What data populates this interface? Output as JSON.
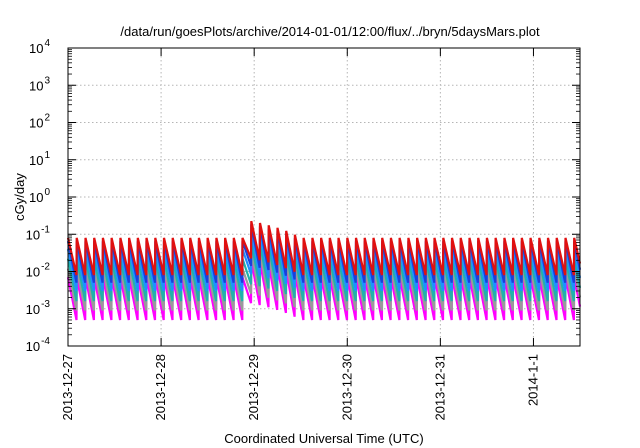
{
  "chart_data": {
    "type": "line",
    "title": "/data/run/goesPlots/archive/2014-01-01/12:00/flux/../bryn/5daysMars.plot",
    "xlabel": "Coordinated Universal Time (UTC)",
    "ylabel": "cGy/day",
    "y_scale": "log",
    "ylim": [
      0.0001,
      10000
    ],
    "xlim": [
      "2013-12-27",
      "2014-01-01 12:00"
    ],
    "x_tick_labels": [
      "2013-12-27",
      "2013-12-28",
      "2013-12-29",
      "2013-12-30",
      "2013-12-31",
      "2014-1-1"
    ],
    "y_ticks": [
      {
        "base": "10",
        "exp": "-4"
      },
      {
        "base": "10",
        "exp": "-3"
      },
      {
        "base": "10",
        "exp": "-2"
      },
      {
        "base": "10",
        "exp": "-1"
      },
      {
        "base": "10",
        "exp": "0"
      },
      {
        "base": "10",
        "exp": "1"
      },
      {
        "base": "10",
        "exp": "2"
      },
      {
        "base": "10",
        "exp": "3"
      },
      {
        "base": "10",
        "exp": "4"
      }
    ],
    "grid": true,
    "sawtooth_period_hours": 2.25,
    "enhancement": {
      "start": "2013-12-28 22:00",
      "end": "2013-12-29 12:00",
      "factor": 3
    },
    "series": [
      {
        "color": "#e01010",
        "peak": 0.08,
        "trough": 0.008
      },
      {
        "color": "#1a3fdc",
        "peak": 0.065,
        "trough": 0.005
      },
      {
        "color": "#1e90ff",
        "peak": 0.04,
        "trough": 0.003
      },
      {
        "color": "#20b2aa",
        "peak": 0.022,
        "trough": 0.0016
      },
      {
        "color": "#9a9a9a",
        "peak": 0.012,
        "trough": 0.0009
      },
      {
        "color": "#ff00ff",
        "peak": 0.007,
        "trough": 0.0005
      }
    ]
  }
}
